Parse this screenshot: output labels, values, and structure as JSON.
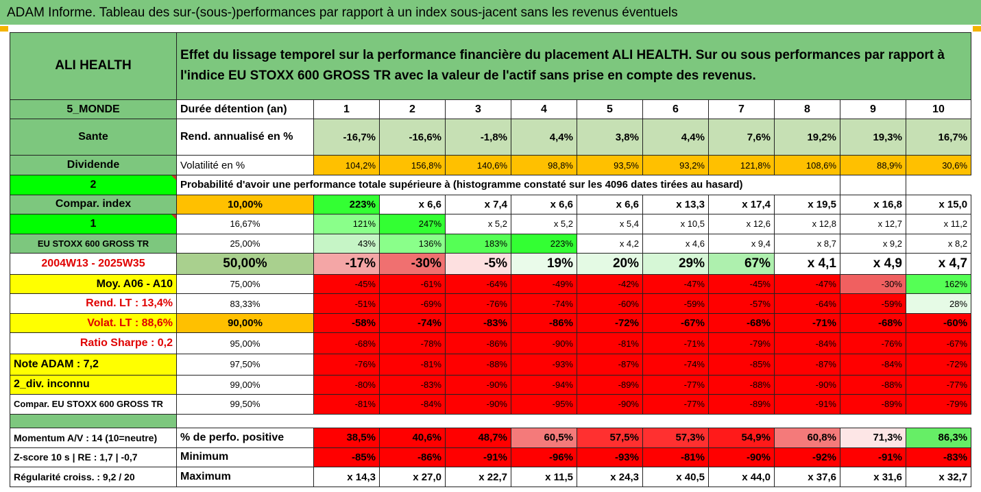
{
  "title": "ADAM Informe. Tableau des sur-(sous-)performances par rapport à un index sous-jacent sans les revenus éventuels",
  "asset_name": "ALI HEALTH",
  "description": "Effet du lissage temporel sur la performance financière du placement ALI HEALTH. Sur ou sous performances par rapport à l'indice EU STOXX 600 GROSS TR avec la valeur de l'actif sans prise en compte des revenus.",
  "side": {
    "zone": "5_MONDE",
    "sector": "Sante",
    "dividend": "Dividende",
    "dividend_val": "2",
    "compar_index": "Compar. index",
    "compar_val": "1",
    "index_name": "EU STOXX 600 GROSS TR",
    "period": "2004W13 - 2025W35",
    "moy": "Moy. A06 - A10",
    "rend_lt": "Rend. LT :   13,4%",
    "volat_lt": "Volat. LT :   88,6%",
    "sharpe": "Ratio Sharpe :    0,2",
    "note": "Note ADAM : 7,2",
    "div": "2_div. inconnu",
    "compar_full": "Compar. EU STOXX 600 GROSS TR",
    "momentum": "Momentum A/V : 14 (10=neutre)",
    "zscore": "Z-score 10 s  |  RE : 1,7  | -0,7",
    "regularite": "Régularité croiss. : 9,2 / 20"
  },
  "labels": {
    "duree": "Durée détention (an)",
    "rend": "Rend. annualisé en %",
    "volat": "Volatilité en %",
    "proba": "Probabilité d'avoir une performance totale supérieure à (histogramme constaté sur les 4096 dates tirées au hasard)",
    "pos": "% de perfo. positive",
    "min": "Minimum",
    "max": "Maximum"
  },
  "years": [
    "1",
    "2",
    "3",
    "4",
    "5",
    "6",
    "7",
    "8",
    "9",
    "10"
  ],
  "rend": [
    "-16,7%",
    "-16,6%",
    "-1,8%",
    "4,4%",
    "3,8%",
    "4,4%",
    "7,6%",
    "19,2%",
    "19,3%",
    "16,7%"
  ],
  "volat": [
    "104,2%",
    "156,8%",
    "140,6%",
    "98,8%",
    "93,5%",
    "93,2%",
    "121,8%",
    "108,6%",
    "88,9%",
    "30,6%"
  ],
  "pct_rows": [
    {
      "p": "10,00%",
      "v": [
        "223%",
        "x 6,6",
        "x 7,4",
        "x 6,6",
        "x 6,6",
        "x 13,3",
        "x 17,4",
        "x 19,5",
        "x 16,8",
        "x 15,0"
      ]
    },
    {
      "p": "16,67%",
      "v": [
        "121%",
        "247%",
        "x 5,2",
        "x 5,2",
        "x 5,4",
        "x 10,5",
        "x 12,6",
        "x 12,8",
        "x 12,7",
        "x 11,2"
      ]
    },
    {
      "p": "25,00%",
      "v": [
        "43%",
        "136%",
        "183%",
        "223%",
        "x 4,2",
        "x 4,6",
        "x 9,4",
        "x 8,7",
        "x 9,2",
        "x 8,2"
      ]
    },
    {
      "p": "50,00%",
      "v": [
        "-17%",
        "-30%",
        "-5%",
        "19%",
        "20%",
        "29%",
        "67%",
        "x 4,1",
        "x 4,9",
        "x 4,7"
      ]
    },
    {
      "p": "75,00%",
      "v": [
        "-45%",
        "-61%",
        "-64%",
        "-49%",
        "-42%",
        "-47%",
        "-45%",
        "-47%",
        "-30%",
        "162%"
      ]
    },
    {
      "p": "83,33%",
      "v": [
        "-51%",
        "-69%",
        "-76%",
        "-74%",
        "-60%",
        "-59%",
        "-57%",
        "-64%",
        "-59%",
        "28%"
      ]
    },
    {
      "p": "90,00%",
      "v": [
        "-58%",
        "-74%",
        "-83%",
        "-86%",
        "-72%",
        "-67%",
        "-68%",
        "-71%",
        "-68%",
        "-60%"
      ]
    },
    {
      "p": "95,00%",
      "v": [
        "-68%",
        "-78%",
        "-86%",
        "-90%",
        "-81%",
        "-71%",
        "-79%",
        "-84%",
        "-76%",
        "-67%"
      ]
    },
    {
      "p": "97,50%",
      "v": [
        "-76%",
        "-81%",
        "-88%",
        "-93%",
        "-87%",
        "-74%",
        "-85%",
        "-87%",
        "-84%",
        "-72%"
      ]
    },
    {
      "p": "99,00%",
      "v": [
        "-80%",
        "-83%",
        "-90%",
        "-94%",
        "-89%",
        "-77%",
        "-88%",
        "-90%",
        "-88%",
        "-77%"
      ]
    },
    {
      "p": "99,50%",
      "v": [
        "-81%",
        "-84%",
        "-90%",
        "-95%",
        "-90%",
        "-77%",
        "-89%",
        "-91%",
        "-89%",
        "-79%"
      ]
    }
  ],
  "pos": [
    "38,5%",
    "40,6%",
    "48,7%",
    "60,5%",
    "57,5%",
    "57,3%",
    "54,9%",
    "60,8%",
    "71,3%",
    "86,3%"
  ],
  "min": [
    "-85%",
    "-86%",
    "-91%",
    "-96%",
    "-93%",
    "-81%",
    "-90%",
    "-92%",
    "-91%",
    "-83%"
  ],
  "max": [
    "x 14,3",
    "x 27,0",
    "x 22,7",
    "x 11,5",
    "x 24,3",
    "x 40,5",
    "x 44,0",
    "x 37,6",
    "x 31,6",
    "x 32,7"
  ],
  "colors": {
    "green": "#7dc77e",
    "red": "#ff0000",
    "orange": "#ffc000",
    "yellow": "#ffff00",
    "bright_green": "#00ff00"
  }
}
